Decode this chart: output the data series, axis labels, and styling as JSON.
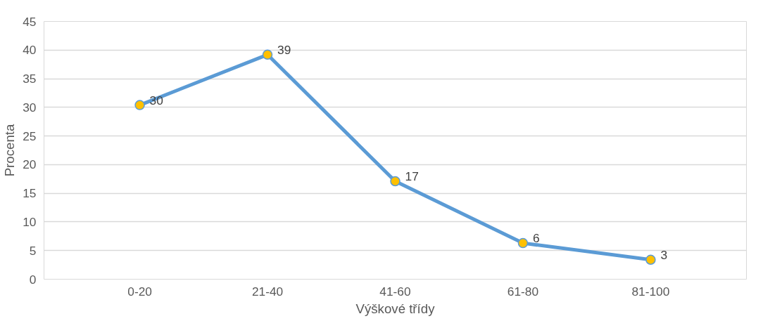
{
  "chart_data": {
    "type": "line",
    "xlabel": "Výškové třídy",
    "ylabel": "Procenta",
    "categories": [
      "0-20",
      "21-40",
      "41-60",
      "61-80",
      "81-100"
    ],
    "series": [
      {
        "color": "#5b9bd5",
        "values": [
          30.4,
          39.2,
          17.1,
          6.3,
          3.4
        ],
        "value_labels": [
          "30",
          "39",
          "17",
          "6",
          "3"
        ]
      }
    ],
    "ylim": [
      0,
      45
    ],
    "yticks": [
      0,
      5,
      10,
      15,
      20,
      25,
      30,
      35,
      40,
      45
    ],
    "grid": "y",
    "marker": "circle",
    "line_style": "solid"
  }
}
